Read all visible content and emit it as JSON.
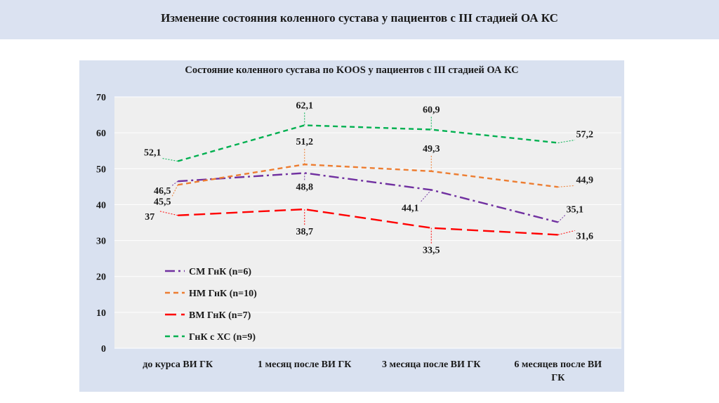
{
  "slide": {
    "title": "Изменение состояния коленного сустава у пациентов с III стадией ОА КС"
  },
  "chart_data": {
    "type": "line",
    "title": "Состояние коленного сустава по KOOS у пациентов с III стадией ОА КС",
    "categories": [
      "до курса ВИ ГК",
      "1 месяц после ВИ ГК",
      "3 месяца после ВИ ГК",
      "6 месяцев после ВИ ГК"
    ],
    "ylim": [
      0,
      70
    ],
    "yticks": [
      0,
      10,
      20,
      30,
      40,
      50,
      60,
      70
    ],
    "grid": true,
    "legend_position": "inside-lower-left",
    "series": [
      {
        "name": "СМ ГнК (n=6)",
        "values": [
          46.5,
          48.8,
          44.1,
          35.1
        ],
        "labels": [
          "46,5",
          "48,8",
          "44,1",
          "35,1"
        ],
        "color": "#7030a0",
        "dash": "dashdot"
      },
      {
        "name": "НМ ГнК (n=10)",
        "values": [
          45.5,
          51.2,
          49.3,
          44.9
        ],
        "labels": [
          "45,5",
          "51,2",
          "49,3",
          "44,9"
        ],
        "color": "#ed7d31",
        "dash": "dash"
      },
      {
        "name": "ВМ ГнК (n=7)",
        "values": [
          37,
          38.7,
          33.5,
          31.6
        ],
        "labels": [
          "37",
          "38,7",
          "33,5",
          "31,6"
        ],
        "color": "#ff0000",
        "dash": "longdash"
      },
      {
        "name": "ГнК с ХС (n=9)",
        "values": [
          52.1,
          62.1,
          60.9,
          57.2
        ],
        "labels": [
          "52,1",
          "62,1",
          "60,9",
          "57,2"
        ],
        "color": "#00b050",
        "dash": "dash"
      }
    ]
  }
}
